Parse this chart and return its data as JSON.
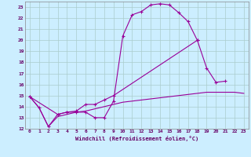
{
  "title": "",
  "xlabel": "Windchill (Refroidissement éolien,°C)",
  "background_color": "#cceeff",
  "grid_color": "#aacccc",
  "line_color": "#990099",
  "xlim": [
    -0.5,
    23.5
  ],
  "ylim": [
    12,
    23.5
  ],
  "yticks": [
    12,
    13,
    14,
    15,
    16,
    17,
    18,
    19,
    20,
    21,
    22,
    23
  ],
  "xticks": [
    0,
    1,
    2,
    3,
    4,
    5,
    6,
    7,
    8,
    9,
    10,
    11,
    12,
    13,
    14,
    15,
    16,
    17,
    18,
    19,
    20,
    21,
    22,
    23
  ],
  "series": [
    {
      "x": [
        0,
        1,
        2,
        3,
        4,
        5,
        6,
        7,
        8,
        9,
        10,
        11,
        12,
        13,
        14,
        15,
        16,
        17,
        18
      ],
      "y": [
        14.9,
        13.9,
        12.2,
        13.3,
        13.5,
        13.5,
        13.5,
        13.0,
        13.0,
        14.5,
        20.4,
        22.3,
        22.6,
        23.2,
        23.3,
        23.2,
        22.5,
        21.7,
        20.0
      ],
      "marker": true
    },
    {
      "x": [
        0,
        3,
        4,
        5,
        6,
        7,
        8,
        9,
        18,
        19,
        20,
        21
      ],
      "y": [
        14.9,
        13.3,
        13.5,
        13.6,
        14.2,
        14.2,
        14.6,
        15.0,
        20.0,
        17.5,
        16.2,
        16.3
      ],
      "marker": true
    },
    {
      "x": [
        0,
        1,
        2,
        3,
        4,
        5,
        6,
        7,
        8,
        9,
        10,
        11,
        12,
        13,
        14,
        15,
        16,
        17,
        18,
        19,
        20,
        21,
        22,
        23
      ],
      "y": [
        14.9,
        13.9,
        12.2,
        13.1,
        13.3,
        13.5,
        13.6,
        13.8,
        14.0,
        14.2,
        14.4,
        14.5,
        14.6,
        14.7,
        14.8,
        14.9,
        15.0,
        15.1,
        15.2,
        15.3,
        15.3,
        15.3,
        15.3,
        15.2
      ],
      "marker": false
    }
  ]
}
